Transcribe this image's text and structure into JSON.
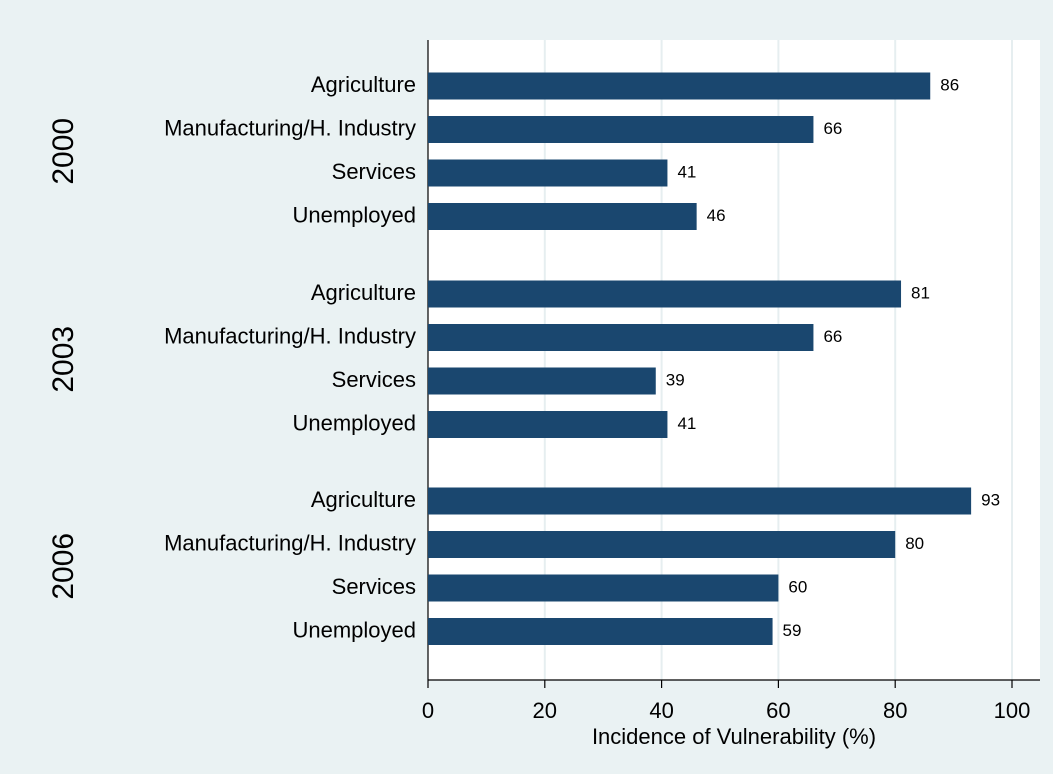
{
  "chart_data": {
    "type": "hbar-grouped",
    "x_label": "Incidence of Vulnerability (%)",
    "groups": [
      {
        "name": "2000",
        "categories": [
          "Agriculture",
          "Manufacturing/H. Industry",
          "Services",
          "Unemployed"
        ],
        "values": [
          86,
          66,
          41,
          46
        ]
      },
      {
        "name": "2003",
        "categories": [
          "Agriculture",
          "Manufacturing/H. Industry",
          "Services",
          "Unemployed"
        ],
        "values": [
          81,
          66,
          39,
          41
        ]
      },
      {
        "name": "2006",
        "categories": [
          "Agriculture",
          "Manufacturing/H. Industry",
          "Services",
          "Unemployed"
        ],
        "values": [
          93,
          80,
          60,
          59
        ]
      }
    ],
    "color": "#1a476f",
    "xlim": [
      0,
      105
    ],
    "xticks": [
      0,
      20,
      40,
      60,
      80,
      100
    ],
    "grid": true
  }
}
